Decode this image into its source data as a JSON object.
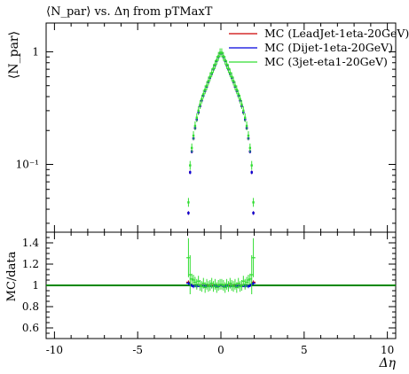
{
  "chart_data": [
    {
      "type": "scatter",
      "title": "⟨N_par⟩ vs. Δη from pTMaxT",
      "ylabel": "⟨N_par⟩",
      "xlabel": "",
      "xlim": [
        -10.5,
        10.5
      ],
      "ylim": [
        0.025,
        1.8
      ],
      "yscale": "log",
      "yticks": [
        {
          "value": 0.1,
          "label": "10⁻¹"
        },
        {
          "value": 1,
          "label": "1"
        }
      ],
      "legend_position": "top-right",
      "series": [
        {
          "name": "MC (LeadJet-1eta-20GeV)",
          "color": "#cc0000",
          "x": [
            -1.95,
            -1.85,
            -1.75,
            -1.65,
            -1.55,
            -1.45,
            -1.35,
            -1.25,
            -1.15,
            -1.05,
            -0.95,
            -0.85,
            -0.75,
            -0.65,
            -0.55,
            -0.45,
            -0.35,
            -0.25,
            -0.15,
            -0.05,
            0.05,
            0.15,
            0.25,
            0.35,
            0.45,
            0.55,
            0.65,
            0.75,
            0.85,
            0.95,
            1.05,
            1.15,
            1.25,
            1.35,
            1.45,
            1.55,
            1.65,
            1.75,
            1.85,
            1.95
          ],
          "y": [
            0.037,
            0.085,
            0.13,
            0.17,
            0.21,
            0.25,
            0.29,
            0.33,
            0.37,
            0.41,
            0.45,
            0.49,
            0.54,
            0.59,
            0.64,
            0.7,
            0.76,
            0.83,
            0.9,
            0.97,
            0.97,
            0.9,
            0.83,
            0.76,
            0.7,
            0.64,
            0.59,
            0.54,
            0.49,
            0.45,
            0.41,
            0.37,
            0.33,
            0.29,
            0.25,
            0.21,
            0.17,
            0.13,
            0.085,
            0.037
          ]
        },
        {
          "name": "MC (Dijet-1eta-20GeV)",
          "color": "#0000dd",
          "x": [
            -1.95,
            -1.85,
            -1.75,
            -1.65,
            -1.55,
            -1.45,
            -1.35,
            -1.25,
            -1.15,
            -1.05,
            -0.95,
            -0.85,
            -0.75,
            -0.65,
            -0.55,
            -0.45,
            -0.35,
            -0.25,
            -0.15,
            -0.05,
            0.05,
            0.15,
            0.25,
            0.35,
            0.45,
            0.55,
            0.65,
            0.75,
            0.85,
            0.95,
            1.05,
            1.15,
            1.25,
            1.35,
            1.45,
            1.55,
            1.65,
            1.75,
            1.85,
            1.95
          ],
          "y": [
            0.037,
            0.085,
            0.13,
            0.17,
            0.21,
            0.25,
            0.29,
            0.33,
            0.37,
            0.41,
            0.45,
            0.49,
            0.54,
            0.59,
            0.64,
            0.7,
            0.76,
            0.83,
            0.9,
            0.97,
            0.97,
            0.9,
            0.83,
            0.76,
            0.7,
            0.64,
            0.59,
            0.54,
            0.49,
            0.45,
            0.41,
            0.37,
            0.33,
            0.29,
            0.25,
            0.21,
            0.17,
            0.13,
            0.085,
            0.037
          ]
        },
        {
          "name": "MC (3jet-eta1-20GeV)",
          "color": "#33dd33",
          "x": [
            -1.95,
            -1.85,
            -1.75,
            -1.65,
            -1.55,
            -1.45,
            -1.35,
            -1.25,
            -1.15,
            -1.05,
            -0.95,
            -0.85,
            -0.75,
            -0.65,
            -0.55,
            -0.45,
            -0.35,
            -0.25,
            -0.15,
            -0.05,
            0.05,
            0.15,
            0.25,
            0.35,
            0.45,
            0.55,
            0.65,
            0.75,
            0.85,
            0.95,
            1.05,
            1.15,
            1.25,
            1.35,
            1.45,
            1.55,
            1.65,
            1.75,
            1.85,
            1.95
          ],
          "y": [
            0.046,
            0.098,
            0.14,
            0.18,
            0.22,
            0.26,
            0.3,
            0.34,
            0.38,
            0.42,
            0.46,
            0.5,
            0.55,
            0.6,
            0.65,
            0.71,
            0.77,
            0.84,
            0.91,
            0.98,
            0.98,
            0.91,
            0.84,
            0.77,
            0.71,
            0.65,
            0.6,
            0.55,
            0.5,
            0.46,
            0.42,
            0.38,
            0.34,
            0.3,
            0.26,
            0.22,
            0.18,
            0.14,
            0.098,
            0.046
          ]
        }
      ]
    },
    {
      "type": "line",
      "title": "",
      "ylabel": "MC/data",
      "xlabel": "Δη",
      "xlim": [
        -10.5,
        10.5
      ],
      "ylim": [
        0.5,
        1.5
      ],
      "xticks": [
        -10,
        -5,
        0,
        5,
        10
      ],
      "yticks": [
        0.6,
        0.8,
        1,
        1.2,
        1.4
      ],
      "reference_line": {
        "y": 1,
        "color": "#008800"
      },
      "series": [
        {
          "name": "MC (LeadJet-1eta-20GeV)",
          "color": "#cc0000",
          "x": [
            -1.95,
            -1.85,
            -1.75,
            -1.65,
            -1.55,
            -1.45,
            -1.35,
            -1.25,
            -1.15,
            -1.05,
            -0.95,
            -0.85,
            -0.75,
            -0.65,
            -0.55,
            -0.45,
            -0.35,
            -0.25,
            -0.15,
            -0.05,
            0.05,
            0.15,
            0.25,
            0.35,
            0.45,
            0.55,
            0.65,
            0.75,
            0.85,
            0.95,
            1.05,
            1.15,
            1.25,
            1.35,
            1.45,
            1.55,
            1.65,
            1.75,
            1.85,
            1.95
          ],
          "y": [
            1.03,
            1.01,
            1.0,
            1.0,
            1.0,
            1.0,
            1.0,
            1.0,
            1.0,
            1.0,
            1.0,
            1.0,
            1.0,
            1.0,
            1.0,
            1.0,
            1.0,
            1.0,
            1.0,
            1.0,
            1.0,
            1.0,
            1.0,
            1.0,
            1.0,
            1.0,
            1.0,
            1.0,
            1.0,
            1.0,
            1.0,
            1.0,
            1.0,
            1.0,
            1.0,
            1.0,
            1.0,
            1.0,
            1.01,
            1.03
          ]
        },
        {
          "name": "MC (Dijet-1eta-20GeV)",
          "color": "#0000dd",
          "x": [
            -1.95,
            -1.85,
            -1.75,
            -1.65,
            -1.55,
            -1.45,
            -1.35,
            -1.25,
            -1.15,
            -1.05,
            -0.95,
            -0.85,
            -0.75,
            -0.65,
            -0.55,
            -0.45,
            -0.35,
            -0.25,
            -0.15,
            -0.05,
            0.05,
            0.15,
            0.25,
            0.35,
            0.45,
            0.55,
            0.65,
            0.75,
            0.85,
            0.95,
            1.05,
            1.15,
            1.25,
            1.35,
            1.45,
            1.55,
            1.65,
            1.75,
            1.85,
            1.95
          ],
          "y": [
            1.02,
            1.01,
            1.0,
            0.99,
            1.0,
            0.99,
            1.0,
            0.99,
            1.0,
            0.99,
            1.0,
            0.99,
            0.99,
            1.0,
            0.99,
            0.99,
            1.0,
            0.99,
            0.99,
            1.0,
            1.0,
            0.99,
            0.99,
            1.0,
            0.99,
            0.99,
            1.0,
            0.99,
            0.99,
            1.0,
            0.99,
            1.0,
            0.99,
            1.0,
            0.99,
            1.0,
            0.99,
            1.0,
            1.01,
            1.02
          ]
        },
        {
          "name": "MC (3jet-eta1-20GeV)",
          "color": "#33dd33",
          "x": [
            -1.95,
            -1.85,
            -1.75,
            -1.65,
            -1.55,
            -1.45,
            -1.35,
            -1.25,
            -1.15,
            -1.05,
            -0.95,
            -0.85,
            -0.75,
            -0.65,
            -0.55,
            -0.45,
            -0.35,
            -0.25,
            -0.15,
            -0.05,
            0.05,
            0.15,
            0.25,
            0.35,
            0.45,
            0.55,
            0.65,
            0.75,
            0.85,
            0.95,
            1.05,
            1.15,
            1.25,
            1.35,
            1.45,
            1.55,
            1.65,
            1.75,
            1.85,
            1.95
          ],
          "y": [
            1.26,
            1.1,
            1.06,
            1.05,
            1.03,
            1.01,
            1.04,
            1.0,
            0.99,
            1.02,
            0.98,
            1.01,
            0.99,
            1.0,
            1.02,
            0.99,
            1.01,
            0.98,
            1.0,
            1.01,
            1.01,
            1.0,
            0.98,
            1.01,
            0.99,
            1.02,
            1.0,
            0.99,
            1.01,
            0.98,
            1.02,
            0.99,
            1.0,
            1.04,
            1.01,
            1.03,
            1.05,
            1.06,
            1.1,
            1.26
          ]
        }
      ]
    }
  ]
}
